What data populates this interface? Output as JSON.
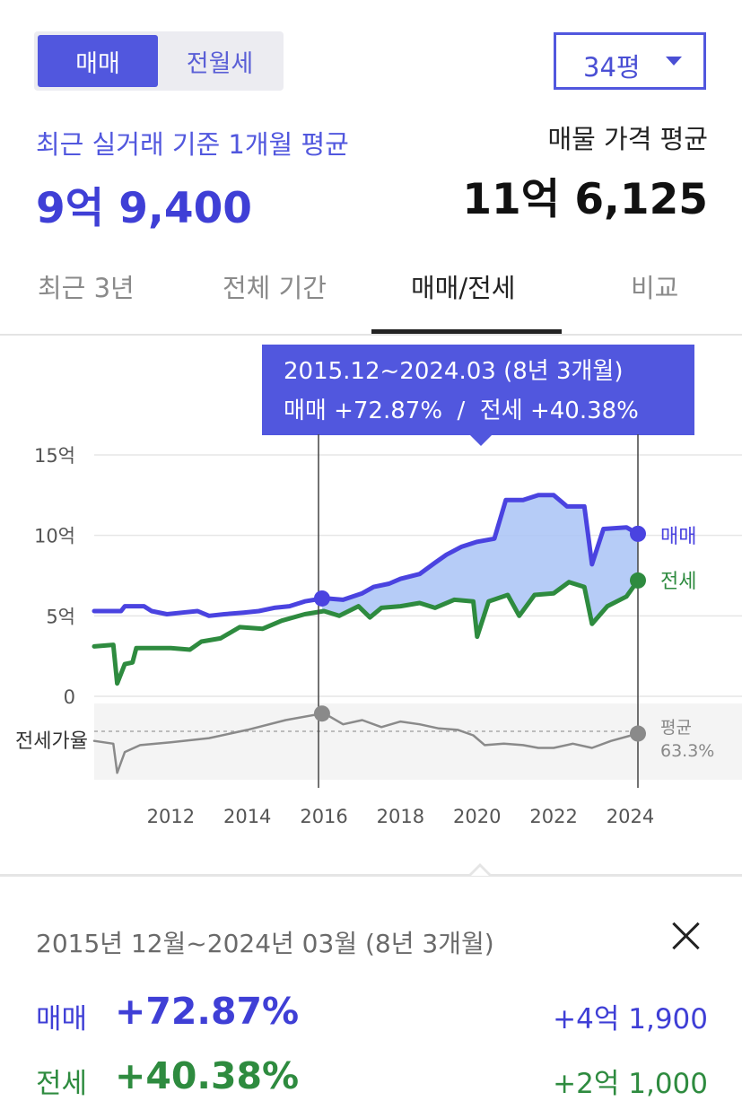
{
  "trade_toggle": {
    "options": [
      "매매",
      "전월세"
    ],
    "selected": "매매"
  },
  "size_select": {
    "value": "34평"
  },
  "recent": {
    "label": "최근 실거래 기준 1개월 평균",
    "value": "9억 9,400"
  },
  "listing": {
    "label": "매물 가격 평균",
    "value": "11억 6,125"
  },
  "tabs": [
    {
      "label": "최근 3년",
      "active": false
    },
    {
      "label": "전체 기간",
      "active": false
    },
    {
      "label": "매매/전세",
      "active": true
    },
    {
      "label": "비교",
      "active": false
    }
  ],
  "tooltip": {
    "period": "2015.12~2024.03 (8년 3개월)",
    "summary": "매매 +72.87%  /  전세 +40.38%"
  },
  "chart_data": {
    "type": "line",
    "y_ticks": [
      "15억",
      "10억",
      "5억",
      "0"
    ],
    "x_ticks": [
      "2012",
      "2014",
      "2016",
      "2018",
      "2020",
      "2022",
      "2024"
    ],
    "ylim": [
      0,
      15
    ],
    "unit": "억",
    "range_start": 2015.95,
    "range_end": 2024.2,
    "series": [
      {
        "name": "매매",
        "color": "#4a43e0",
        "points": [
          [
            2010.0,
            5.3
          ],
          [
            2010.7,
            5.3
          ],
          [
            2010.8,
            5.6
          ],
          [
            2011.3,
            5.6
          ],
          [
            2011.5,
            5.3
          ],
          [
            2011.9,
            5.1
          ],
          [
            2012.3,
            5.2
          ],
          [
            2012.7,
            5.3
          ],
          [
            2013.0,
            5.0
          ],
          [
            2013.4,
            5.1
          ],
          [
            2013.9,
            5.2
          ],
          [
            2014.3,
            5.3
          ],
          [
            2014.7,
            5.5
          ],
          [
            2015.1,
            5.6
          ],
          [
            2015.5,
            5.9
          ],
          [
            2016.0,
            6.1
          ],
          [
            2016.5,
            6.0
          ],
          [
            2017.0,
            6.4
          ],
          [
            2017.3,
            6.8
          ],
          [
            2017.7,
            7.0
          ],
          [
            2018.0,
            7.3
          ],
          [
            2018.5,
            7.6
          ],
          [
            2018.9,
            8.3
          ],
          [
            2019.2,
            8.8
          ],
          [
            2019.6,
            9.3
          ],
          [
            2020.0,
            9.6
          ],
          [
            2020.45,
            9.8
          ],
          [
            2020.75,
            12.2
          ],
          [
            2021.2,
            12.2
          ],
          [
            2021.6,
            12.5
          ],
          [
            2022.0,
            12.5
          ],
          [
            2022.35,
            11.8
          ],
          [
            2022.8,
            11.8
          ],
          [
            2023.0,
            8.2
          ],
          [
            2023.3,
            10.4
          ],
          [
            2023.9,
            10.5
          ],
          [
            2024.2,
            10.1
          ]
        ]
      },
      {
        "name": "전세",
        "color": "#2e8b3f",
        "points": [
          [
            2010.0,
            3.1
          ],
          [
            2010.5,
            3.2
          ],
          [
            2010.6,
            0.8
          ],
          [
            2010.8,
            2.0
          ],
          [
            2011.0,
            2.1
          ],
          [
            2011.1,
            3.0
          ],
          [
            2012.0,
            3.0
          ],
          [
            2012.5,
            2.9
          ],
          [
            2012.8,
            3.4
          ],
          [
            2013.3,
            3.6
          ],
          [
            2013.8,
            4.3
          ],
          [
            2014.4,
            4.2
          ],
          [
            2014.9,
            4.7
          ],
          [
            2015.5,
            5.1
          ],
          [
            2016.0,
            5.3
          ],
          [
            2016.4,
            5.0
          ],
          [
            2016.9,
            5.6
          ],
          [
            2017.2,
            4.9
          ],
          [
            2017.5,
            5.5
          ],
          [
            2018.0,
            5.6
          ],
          [
            2018.5,
            5.8
          ],
          [
            2018.9,
            5.5
          ],
          [
            2019.4,
            6.0
          ],
          [
            2019.9,
            5.9
          ],
          [
            2020.0,
            3.7
          ],
          [
            2020.3,
            5.9
          ],
          [
            2020.8,
            6.3
          ],
          [
            2021.1,
            5.0
          ],
          [
            2021.5,
            6.3
          ],
          [
            2022.0,
            6.4
          ],
          [
            2022.4,
            7.1
          ],
          [
            2022.8,
            6.8
          ],
          [
            2023.0,
            4.5
          ],
          [
            2023.4,
            5.6
          ],
          [
            2023.9,
            6.2
          ],
          [
            2024.2,
            7.2
          ]
        ]
      },
      {
        "name": "전세가율",
        "color": "#8a8a8a",
        "points": [
          [
            2010.0,
            0.58
          ],
          [
            2010.5,
            0.56
          ],
          [
            2010.6,
            0.35
          ],
          [
            2010.8,
            0.5
          ],
          [
            2011.2,
            0.55
          ],
          [
            2012.0,
            0.57
          ],
          [
            2013.0,
            0.6
          ],
          [
            2014.0,
            0.66
          ],
          [
            2015.0,
            0.73
          ],
          [
            2016.0,
            0.78
          ],
          [
            2016.5,
            0.7
          ],
          [
            2017.0,
            0.73
          ],
          [
            2017.5,
            0.68
          ],
          [
            2018.0,
            0.72
          ],
          [
            2018.5,
            0.7
          ],
          [
            2019.0,
            0.67
          ],
          [
            2019.5,
            0.66
          ],
          [
            2019.9,
            0.62
          ],
          [
            2020.2,
            0.55
          ],
          [
            2020.7,
            0.56
          ],
          [
            2021.2,
            0.55
          ],
          [
            2021.6,
            0.53
          ],
          [
            2022.0,
            0.53
          ],
          [
            2022.5,
            0.56
          ],
          [
            2023.0,
            0.53
          ],
          [
            2023.5,
            0.58
          ],
          [
            2024.2,
            0.633
          ]
        ]
      }
    ]
  },
  "legend_labels": {
    "sale": "매매",
    "rent": "전세",
    "ratio": "전세가율",
    "ratio_avg_label": "평균",
    "ratio_avg_value": "63.3%"
  },
  "detail": {
    "period": "2015년 12월~2024년 03월 (8년 3개월)",
    "sale": {
      "label": "매매",
      "pct": "+72.87%",
      "amount": "+4억 1,900"
    },
    "rent": {
      "label": "전세",
      "pct": "+40.38%",
      "amount": "+2억 1,000"
    }
  }
}
